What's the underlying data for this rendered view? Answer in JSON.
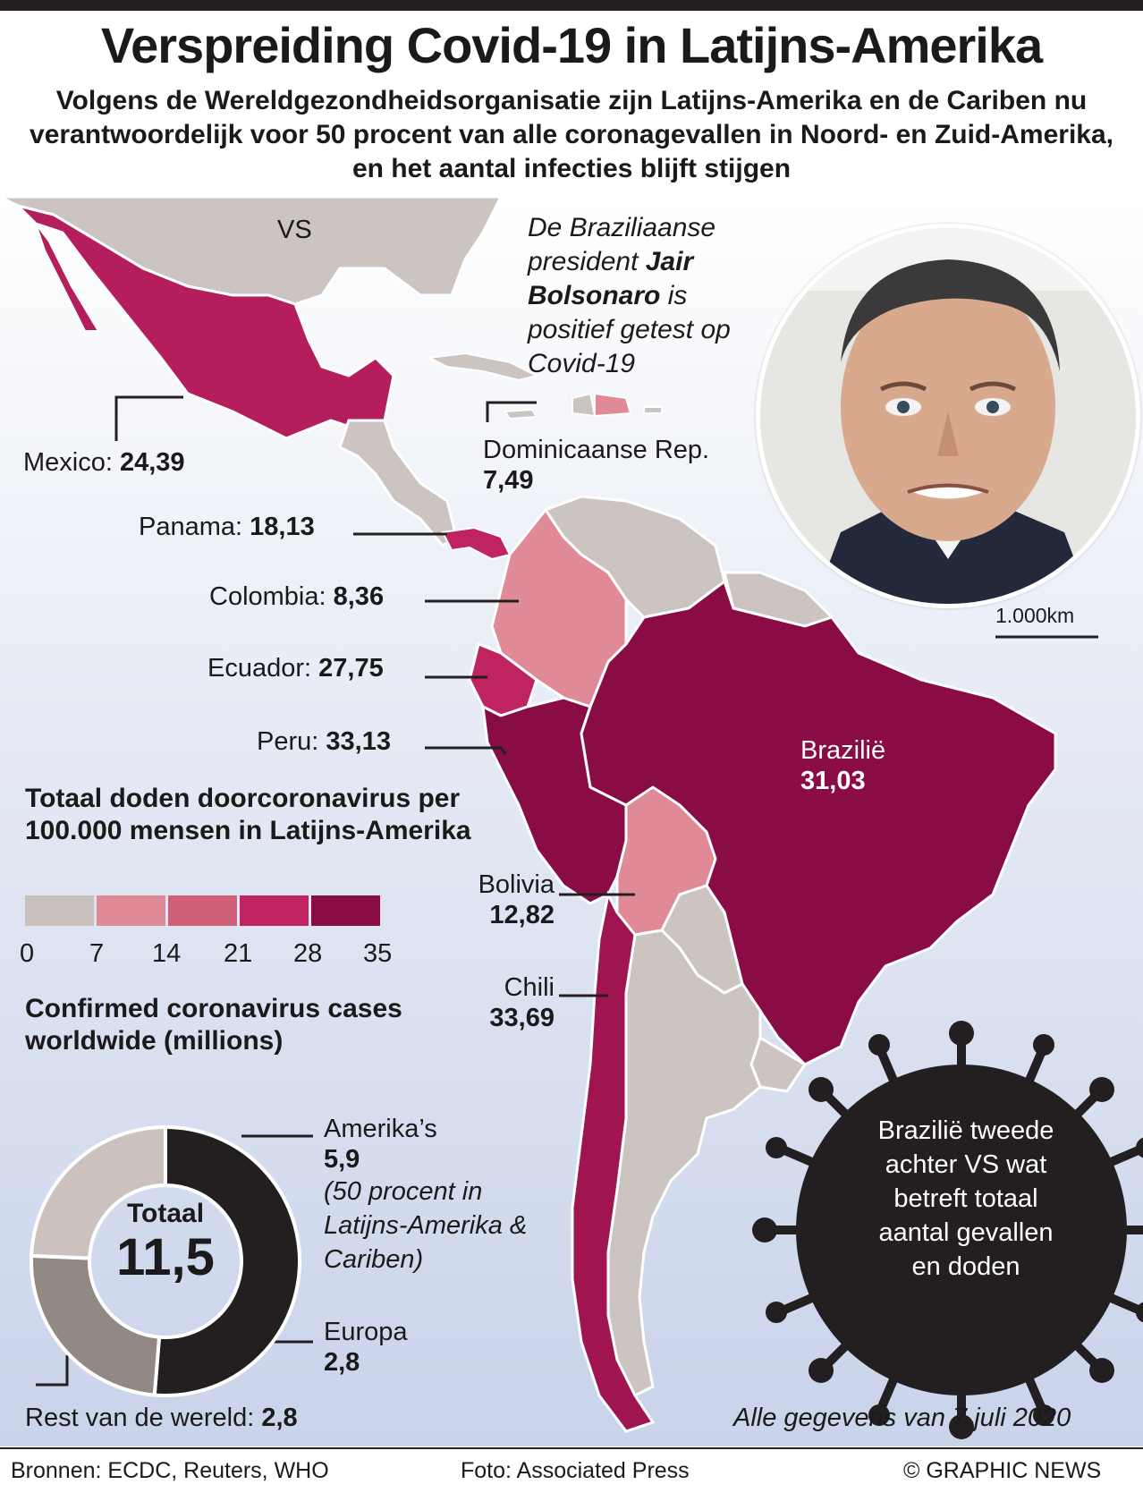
{
  "title": "Verspreiding Covid-19 in Latijns-Amerika",
  "subtitle": "Volgens de Wereldgezondheidsorganisatie zijn Latijns-Amerika en de Cariben nu verantwoordelijk voor 50 procent van alle coronagevallen in Noord- en Zuid-Amerika, en het aantal infecties blijft stijgen",
  "map": {
    "usa_label": "VS",
    "scale_label": "1.000km",
    "countries": [
      {
        "name": "Mexico:",
        "value": "24,39"
      },
      {
        "name": "Dominicaanse Rep.",
        "value": "7,49"
      },
      {
        "name": "Panama:",
        "value": "18,13"
      },
      {
        "name": "Colombia:",
        "value": "8,36"
      },
      {
        "name": "Ecuador:",
        "value": "27,75"
      },
      {
        "name": "Peru:",
        "value": "33,13"
      },
      {
        "name": "Brazilië",
        "value": "31,03"
      },
      {
        "name": "Bolivia",
        "value": "12,82"
      },
      {
        "name": "Chili",
        "value": "33,69"
      }
    ]
  },
  "photo_caption": {
    "part1": "De Braziliaanse president ",
    "name": "Jair Bolsonaro",
    "part2": " is positief getest op Covid-19"
  },
  "legend": {
    "title": "Totaal doden doorcoronavirus per 100.000 mensen in Latijns-Amerika",
    "ticks": [
      "0",
      "7",
      "14",
      "21",
      "28",
      "35"
    ],
    "colors": [
      "#c8c0bd",
      "#e08a98",
      "#d0607a",
      "#bf2360",
      "#8a0c45"
    ]
  },
  "cases": {
    "title": "Confirmed coronavirus cases worldwide (millions)",
    "total_label": "Totaal",
    "total_value": "11,5",
    "segments": [
      {
        "name": "Amerika’s",
        "value": "5,9",
        "note": "(50 procent in Latijns-Amerika & Cariben)",
        "color": "#231f20",
        "share": 0.513
      },
      {
        "name": "Europa",
        "value": "2,8",
        "color": "#938984",
        "share": 0.2435
      },
      {
        "name": "Rest van de wereld:",
        "value": "2,8",
        "color": "#cbc2be",
        "share": 0.2435
      }
    ]
  },
  "virus_text": "Brazilië tweede achter VS wat betreft totaal aantal gevallen en doden",
  "date_note": "Alle gegevens van 7 juli 2020",
  "footer": {
    "sources": "Bronnen: ECDC, Reuters, WHO",
    "photo": "Foto: Associated Press",
    "credit": "© GRAPHIC NEWS"
  }
}
